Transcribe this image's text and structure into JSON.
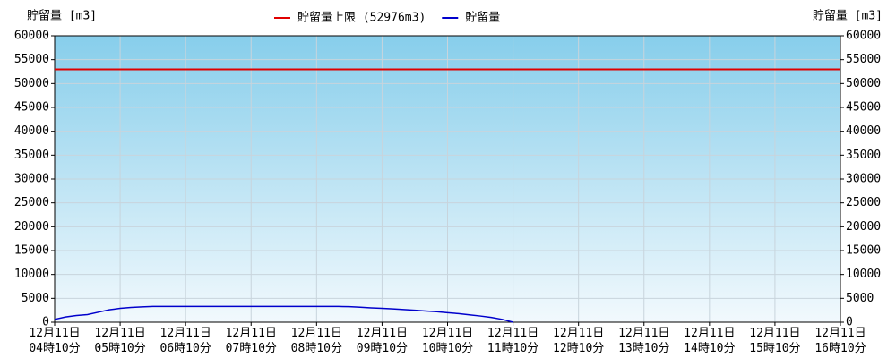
{
  "chart_data": {
    "type": "line",
    "y_label": "貯留量 [m3]",
    "y2_label": "貯留量 [m3]",
    "limit": {
      "name": "貯留量上限 (52976m3)",
      "value": 52976,
      "color": "#e00000"
    },
    "x": [
      "12月11日 04時10分",
      "12月11日 04時20分",
      "12月11日 04時30分",
      "12月11日 04時40分",
      "12月11日 04時50分",
      "12月11日 05時00分",
      "12月11日 05時10分",
      "12月11日 05時20分",
      "12月11日 05時30分",
      "12月11日 05時40分",
      "12月11日 05時50分",
      "12月11日 06時00分",
      "12月11日 06時10分",
      "12月11日 06時20分",
      "12月11日 06時30分",
      "12月11日 06時40分",
      "12月11日 06時50分",
      "12月11日 07時00分",
      "12月11日 07時10分",
      "12月11日 07時20分",
      "12月11日 07時30分",
      "12月11日 07時40分",
      "12月11日 07時50分",
      "12月11日 08時00分",
      "12月11日 08時10分",
      "12月11日 08時20分",
      "12月11日 08時30分",
      "12月11日 08時40分",
      "12月11日 08時50分",
      "12月11日 09時00分",
      "12月11日 09時10分",
      "12月11日 09時20分",
      "12月11日 09時30分",
      "12月11日 09時40分",
      "12月11日 09時50分",
      "12月11日 10時00分",
      "12月11日 10時10分",
      "12月11日 10時20分",
      "12月11日 10時30分",
      "12月11日 10時40分",
      "12月11日 10時50分",
      "12月11日 11時00分",
      "12月11日 11時10分"
    ],
    "series": [
      {
        "name": "貯留量",
        "color": "#0000cc",
        "values": [
          600,
          1100,
          1400,
          1600,
          2100,
          2600,
          2900,
          3100,
          3200,
          3300,
          3300,
          3300,
          3300,
          3300,
          3300,
          3300,
          3300,
          3300,
          3300,
          3300,
          3300,
          3300,
          3300,
          3300,
          3300,
          3300,
          3300,
          3250,
          3150,
          3000,
          2900,
          2800,
          2650,
          2500,
          2350,
          2200,
          2000,
          1800,
          1550,
          1300,
          1000,
          600,
          0
        ]
      }
    ],
    "xlim": [
      "12月11日 04時10分",
      "12月11日 16時10分"
    ],
    "xticks": [
      "12月11日 04時10分",
      "12月11日 05時10分",
      "12月11日 06時10分",
      "12月11日 07時10分",
      "12月11日 08時10分",
      "12月11日 09時10分",
      "12月11日 10時10分",
      "12月11日 11時10分",
      "12月11日 12時10分",
      "12月11日 13時10分",
      "12月11日 14時10分",
      "12月11日 15時10分",
      "12月11日 16時10分"
    ],
    "ylim": [
      0,
      60000
    ],
    "yticks": [
      0,
      5000,
      10000,
      15000,
      20000,
      25000,
      30000,
      35000,
      40000,
      45000,
      50000,
      55000,
      60000
    ],
    "y2lim": [
      0,
      60000
    ],
    "y2ticks": [
      0,
      5000,
      10000,
      15000,
      20000,
      25000,
      30000,
      35000,
      40000,
      45000,
      50000,
      55000,
      60000
    ],
    "grid": true
  }
}
